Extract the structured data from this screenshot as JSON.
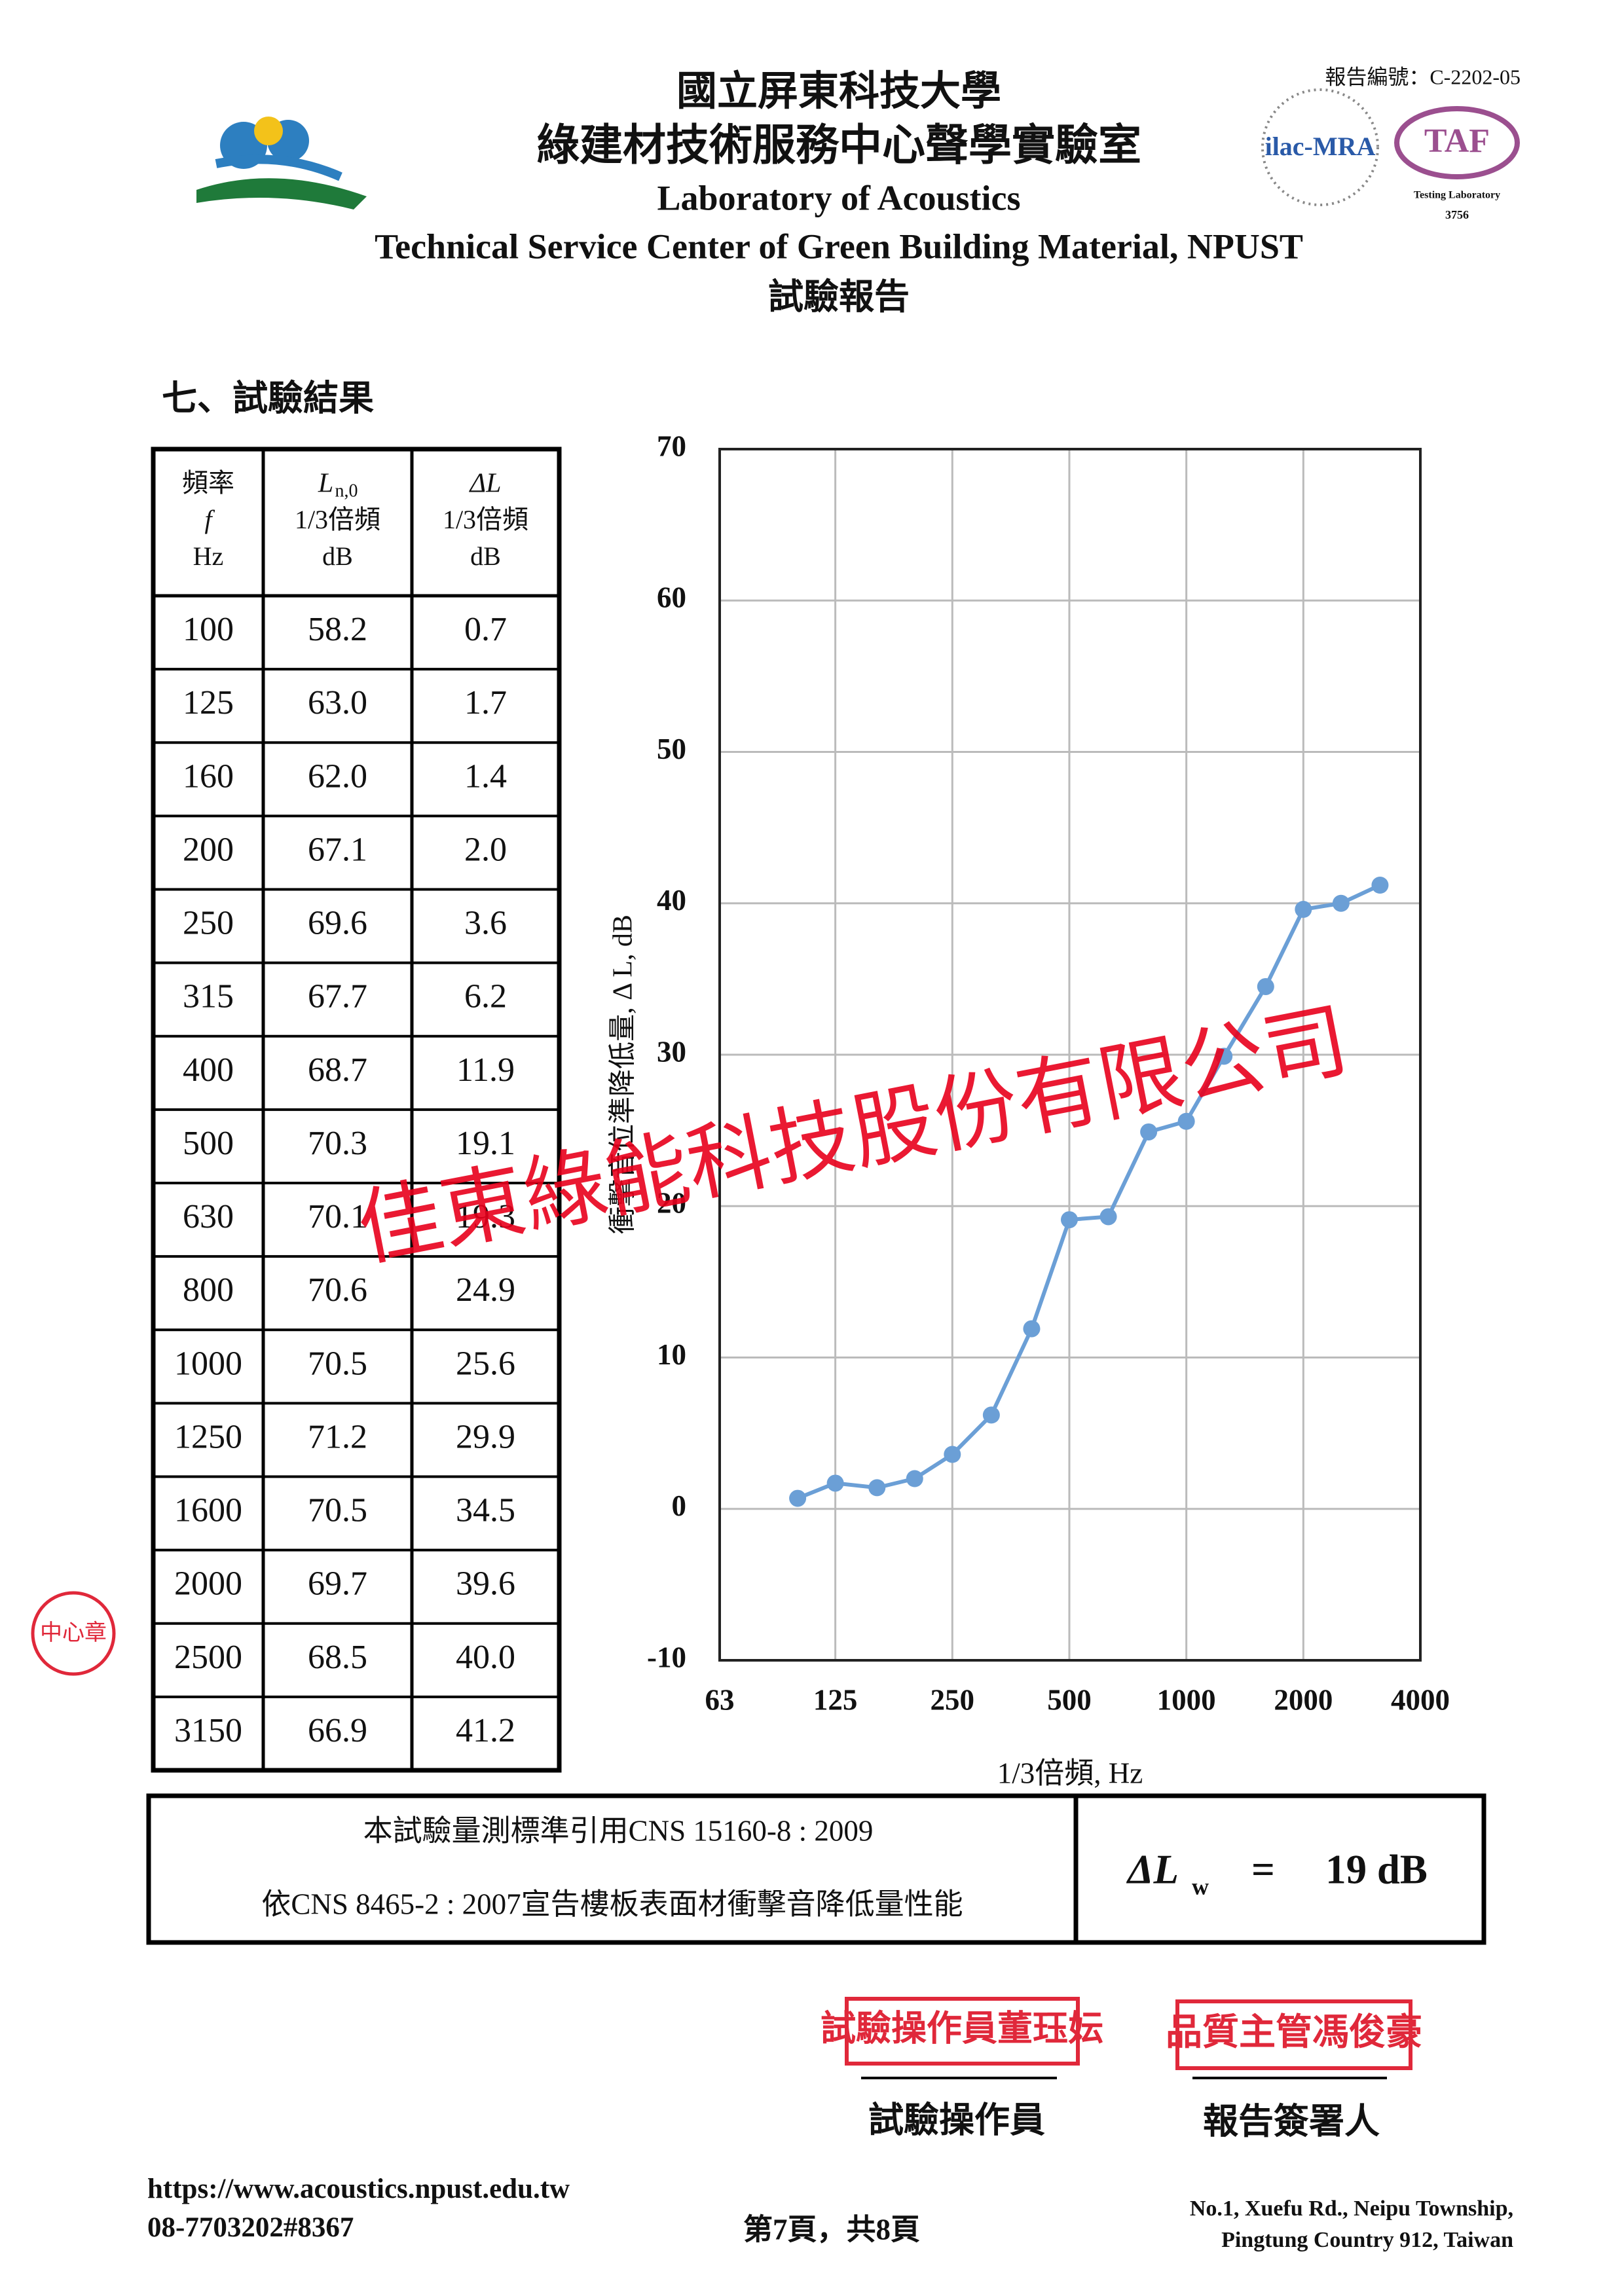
{
  "header": {
    "title_zh": "國立屏東科技大學",
    "subtitle_zh": "綠建材技術服務中心聲學實驗室",
    "title_en": "Laboratory of Acoustics",
    "subtitle_en": "Technical Service Center of Green Building Material, NPUST",
    "report_type": "試驗報告",
    "report_number": "報告編號：C-2202-05",
    "logos": {
      "ilac": "ilac-MRA",
      "taf": "TAF",
      "taf_caption": "Testing Laboratory",
      "taf_number": "3756"
    }
  },
  "section_title": "七、試驗結果",
  "table": {
    "header": [
      {
        "lines": [
          "頻率",
          "f",
          "Hz"
        ]
      },
      {
        "symbol": "L",
        "sub": "n,0",
        "lines": [
          "1/3倍頻",
          "dB"
        ]
      },
      {
        "symbol": "ΔL",
        "lines": [
          "1/3倍頻",
          "dB"
        ]
      }
    ],
    "rows": [
      [
        "100",
        "58.2",
        "0.7"
      ],
      [
        "125",
        "63.0",
        "1.7"
      ],
      [
        "160",
        "62.0",
        "1.4"
      ],
      [
        "200",
        "67.1",
        "2.0"
      ],
      [
        "250",
        "69.6",
        "3.6"
      ],
      [
        "315",
        "67.7",
        "6.2"
      ],
      [
        "400",
        "68.7",
        "11.9"
      ],
      [
        "500",
        "70.3",
        "19.1"
      ],
      [
        "630",
        "70.1",
        "19.3"
      ],
      [
        "800",
        "70.6",
        "24.9"
      ],
      [
        "1000",
        "70.5",
        "25.6"
      ],
      [
        "1250",
        "71.2",
        "29.9"
      ],
      [
        "1600",
        "70.5",
        "34.5"
      ],
      [
        "2000",
        "69.7",
        "39.6"
      ],
      [
        "2500",
        "68.5",
        "40.0"
      ],
      [
        "3150",
        "66.9",
        "41.2"
      ]
    ]
  },
  "chart_data": {
    "type": "line",
    "x": [
      100,
      125,
      160,
      200,
      250,
      315,
      400,
      500,
      630,
      800,
      1000,
      1250,
      1600,
      2000,
      2500,
      3150
    ],
    "values": [
      0.7,
      1.7,
      1.4,
      2.0,
      3.6,
      6.2,
      11.9,
      19.1,
      19.3,
      24.9,
      25.6,
      29.9,
      34.5,
      39.6,
      40.0,
      41.2
    ],
    "color": "#6b9fd6",
    "x_log": true,
    "xlim": [
      63,
      4000
    ],
    "xticks": [
      63,
      125,
      250,
      500,
      1000,
      2000,
      4000
    ],
    "ylim": [
      -10,
      70
    ],
    "yticks": [
      -10,
      0,
      10,
      20,
      30,
      40,
      50,
      60,
      70
    ],
    "grid": true,
    "x_label": "1/3倍頻, Hz",
    "y_label": "衝擊音位準降低量, Δ L, dB"
  },
  "watermark": "佳東綠能科技股份有限公司",
  "conclusion": {
    "lines": [
      "本試驗量測標準引用CNS 15160-8 : 2009",
      "依CNS 8465-2 : 2007宣告樓板表面材衝擊音降低量性能"
    ],
    "result": {
      "symbol": "ΔL",
      "sub": "w",
      "equals": "=",
      "value": "19 dB"
    }
  },
  "signatures": [
    {
      "stamp": "試驗操作員董珏妘",
      "role": "試驗操作員"
    },
    {
      "stamp": "品質主管馮俊豪",
      "role": "報告簽署人"
    }
  ],
  "side_stamp": "中心章",
  "footer": {
    "url": "https://www.acoustics.npust.edu.tw",
    "phone": "08-7703202#8367",
    "page": "第7頁，共8頁",
    "address": [
      "No.1, Xuefu Rd., Neipu Township,",
      "Pingtung Country 912, Taiwan"
    ]
  }
}
